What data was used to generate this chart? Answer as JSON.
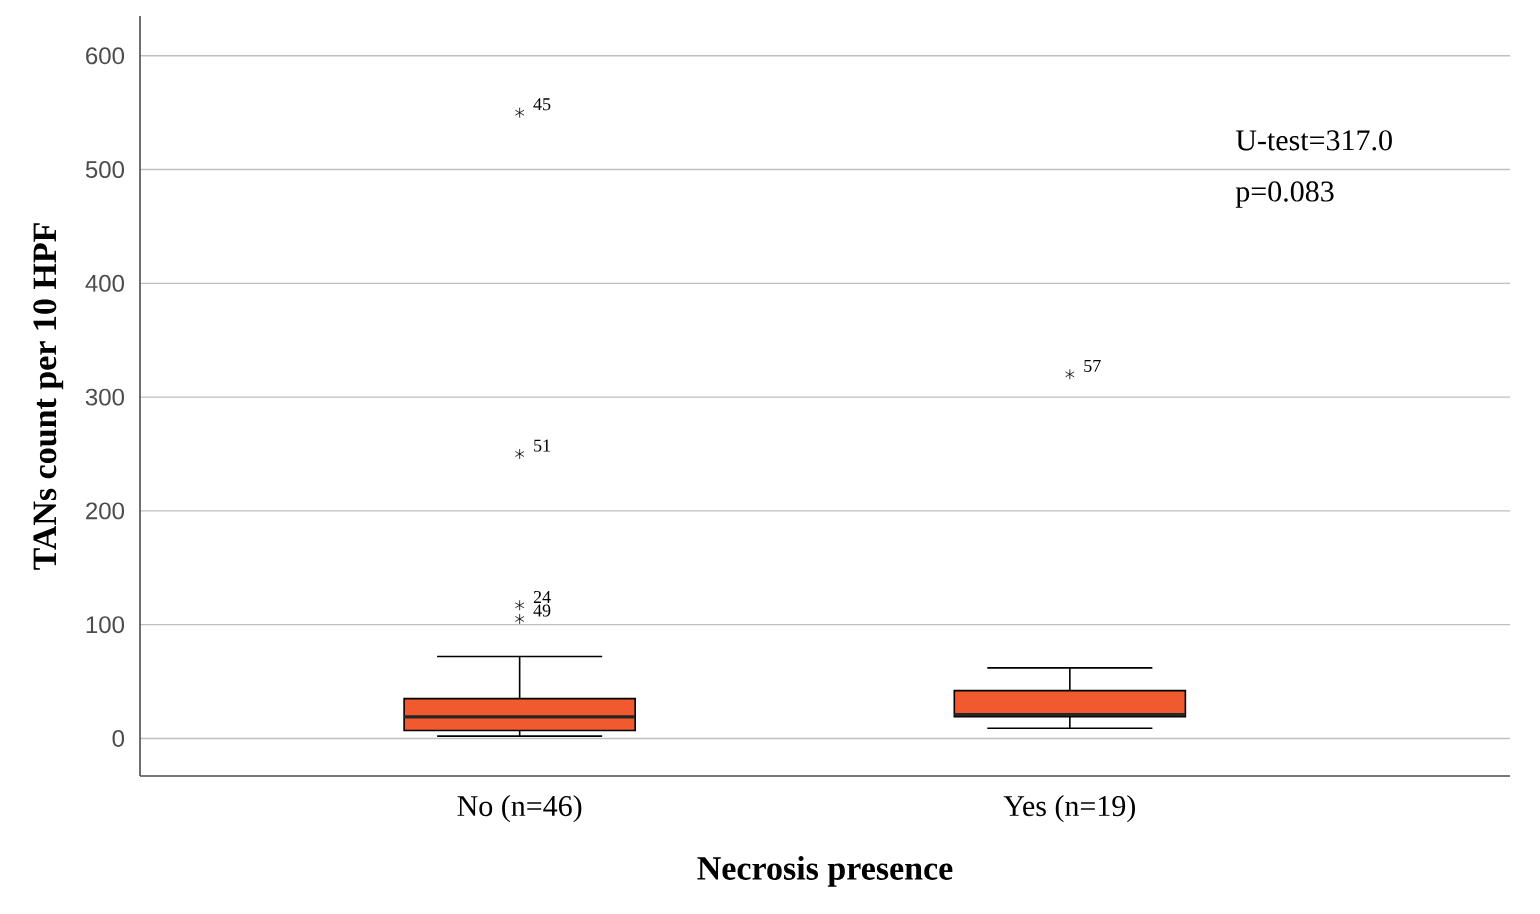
{
  "chart_data": {
    "type": "box",
    "xlabel": "Necrosis presence",
    "ylabel": "TANs count per 10 HPF",
    "categories": [
      "No (n=46)",
      "Yes (n=19)"
    ],
    "boxes": [
      {
        "low": 2,
        "q1": 7,
        "median": 19,
        "q3": 35,
        "high": 72,
        "outliers": [
          550,
          250,
          117,
          105
        ]
      },
      {
        "low": 9,
        "q1": 19,
        "median": 21,
        "q3": 42,
        "high": 62,
        "outliers": [
          320
        ]
      }
    ],
    "color": "#f05a2e",
    "marker": "star",
    "ylim": [
      -33,
      635
    ],
    "yticks": [
      0,
      100,
      200,
      300,
      400,
      500,
      600
    ],
    "grid": "y",
    "annotations": [
      "45",
      "51",
      "24",
      "49",
      "57",
      "U-test=317.0",
      "p=0.083"
    ]
  }
}
